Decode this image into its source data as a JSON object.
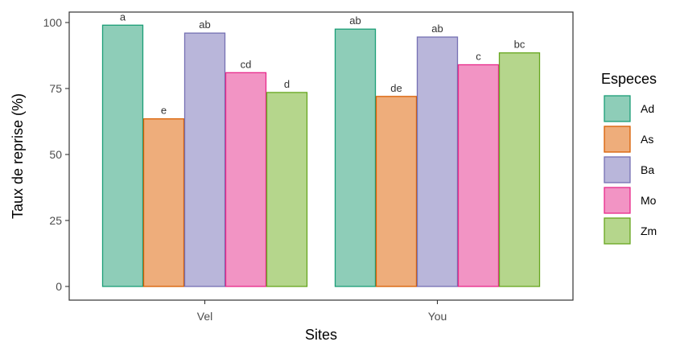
{
  "chart_data": {
    "type": "bar",
    "xlabel": "Sites",
    "ylabel": "Taux de reprise (%)",
    "categories": [
      "Vel",
      "You"
    ],
    "ylim": [
      0,
      100
    ],
    "yticks": [
      0,
      25,
      50,
      75,
      100
    ],
    "grid": false,
    "legend": {
      "title": "Especes",
      "position": "right"
    },
    "series": [
      {
        "name": "Ad",
        "fill": "#8ecdb8",
        "stroke": "#1b9e77",
        "values": [
          99,
          97.5
        ],
        "labels": [
          "a",
          "ab"
        ]
      },
      {
        "name": "As",
        "fill": "#eead7b",
        "stroke": "#d95f02",
        "values": [
          63.5,
          72
        ],
        "labels": [
          "e",
          "de"
        ]
      },
      {
        "name": "Ba",
        "fill": "#b9b6da",
        "stroke": "#7570b3",
        "values": [
          96,
          94.5
        ],
        "labels": [
          "ab",
          "ab"
        ]
      },
      {
        "name": "Mo",
        "fill": "#f294c4",
        "stroke": "#e7298a",
        "values": [
          81,
          84
        ],
        "labels": [
          "cd",
          "c"
        ]
      },
      {
        "name": "Zm",
        "fill": "#b5d68c",
        "stroke": "#66a61e",
        "values": [
          73.5,
          88.5
        ],
        "labels": [
          "d",
          "bc"
        ]
      }
    ]
  }
}
